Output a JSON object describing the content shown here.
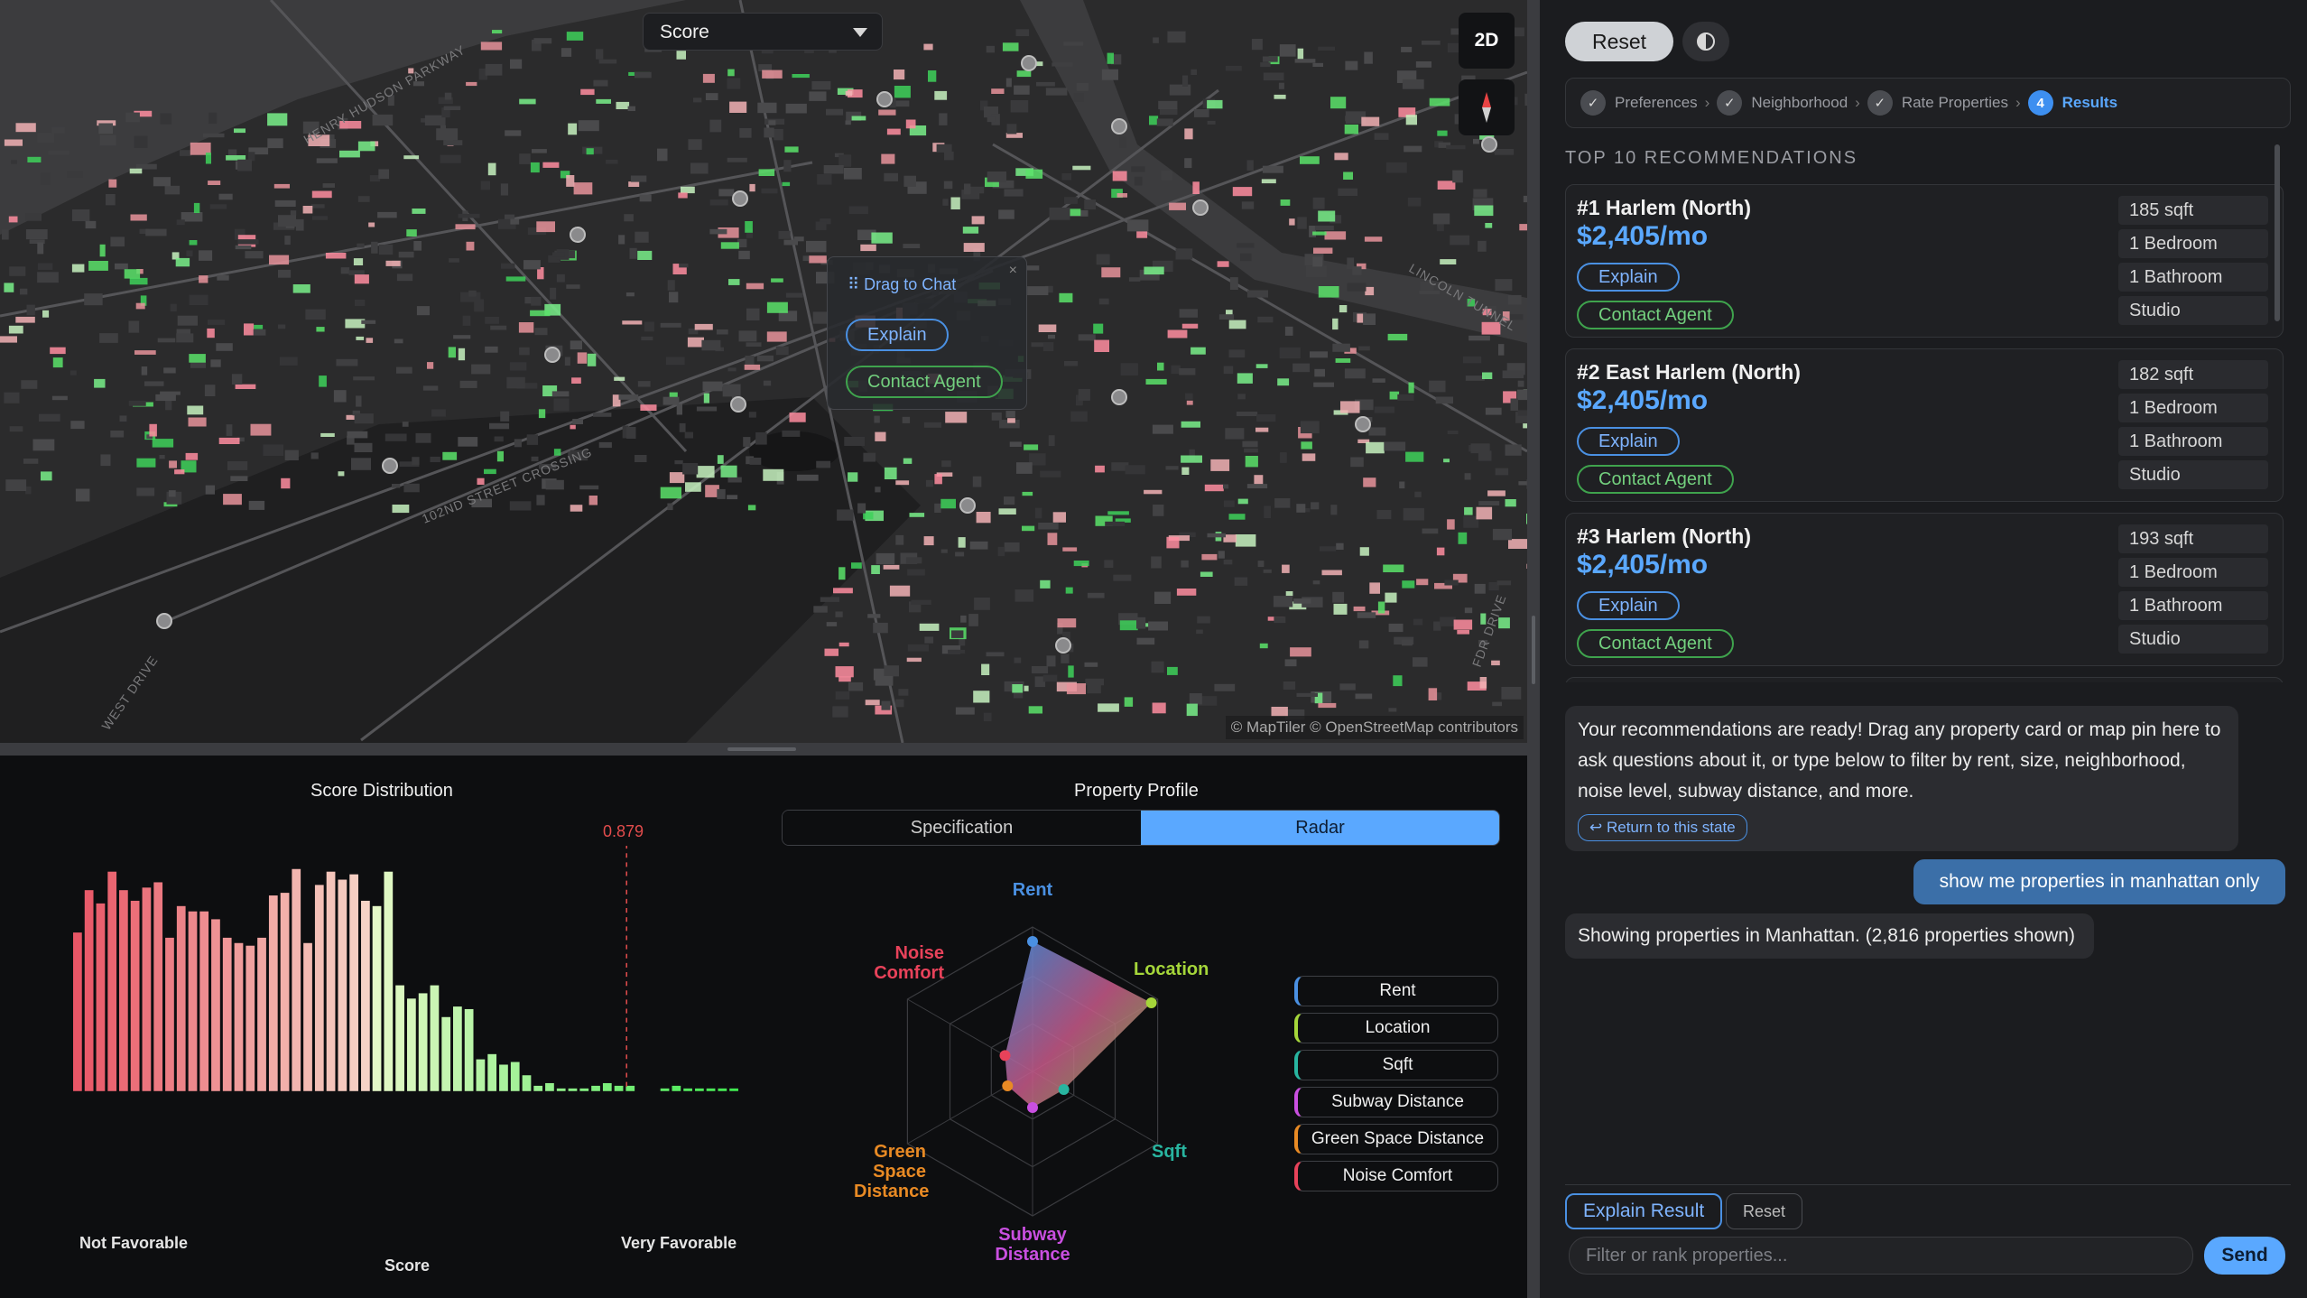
{
  "map": {
    "score_select": "Score",
    "view_toggle": "2D",
    "popup": {
      "drag_label": "⠿ Drag to Chat",
      "explain": "Explain",
      "contact": "Contact Agent"
    },
    "attribution": "© MapTiler © OpenStreetMap contributors",
    "labels": [
      "HENRY HUDSON PARKWAY",
      "102ND STREET CROSSING",
      "WEST DRIVE",
      "LINCOLN TUNNEL",
      "FDR DRIVE"
    ]
  },
  "distribution": {
    "title": "Score Distribution",
    "marker_label": "0.879",
    "left_label": "Not Favorable",
    "right_label": "Very Favorable",
    "axis_title": "Score"
  },
  "profile": {
    "title": "Property Profile",
    "tabs": [
      "Specification",
      "Radar"
    ],
    "active_tab": "Radar",
    "axes": [
      {
        "label": "Rent",
        "color": "#4a90e2",
        "value": 0.9
      },
      {
        "label": "Location",
        "color": "#a5d63a",
        "value": 0.95
      },
      {
        "label": "Sqft",
        "color": "#28b5a0",
        "value": 0.25
      },
      {
        "label": "Subway Distance",
        "color": "#c94fe0",
        "value": 0.25
      },
      {
        "label": "Green Space Distance",
        "color": "#e88a24",
        "value": 0.2
      },
      {
        "label": "Noise Comfort",
        "color": "#e8425a",
        "value": 0.22
      }
    ],
    "legend": [
      "Rent",
      "Location",
      "Sqft",
      "Subway Distance",
      "Green Space Distance",
      "Noise Comfort"
    ]
  },
  "panel": {
    "reset": "Reset",
    "steps": [
      {
        "label": "Preferences",
        "mark": "✓"
      },
      {
        "label": "Neighborhood",
        "mark": "✓"
      },
      {
        "label": "Rate Properties",
        "mark": "✓"
      },
      {
        "label": "Results",
        "mark": "4"
      }
    ],
    "section": "TOP 10 RECOMMENDATIONS",
    "cards": [
      {
        "title": "#1 Harlem (North)",
        "price": "$2,405/mo",
        "explain": "Explain",
        "contact": "Contact Agent",
        "specs": [
          "185 sqft",
          "1 Bedroom",
          "1 Bathroom",
          "Studio"
        ]
      },
      {
        "title": "#2 East Harlem (North)",
        "price": "$2,405/mo",
        "explain": "Explain",
        "contact": "Contact Agent",
        "specs": [
          "182 sqft",
          "1 Bedroom",
          "1 Bathroom",
          "Studio"
        ]
      },
      {
        "title": "#3 Harlem (North)",
        "price": "$2,405/mo",
        "explain": "Explain",
        "contact": "Contact Agent",
        "specs": [
          "193 sqft",
          "1 Bedroom",
          "1 Bathroom",
          "Studio"
        ]
      }
    ],
    "messages": [
      {
        "role": "bot",
        "text": "Your recommendations are ready! Drag any property card or map pin here to ask questions about it, or type below to filter by rent, size, neighborhood, noise level, subway distance, and more.",
        "action": "↩ Return to this state"
      },
      {
        "role": "user",
        "text": "show me properties in manhattan only"
      },
      {
        "role": "bot",
        "text": "Showing properties in Manhattan. (2,816 properties shown)"
      }
    ],
    "explain_result": "Explain Result",
    "reset_small": "Reset",
    "input_placeholder": "Filter or rank properties...",
    "send": "Send"
  },
  "chart_data": {
    "type": "bar",
    "title": "Score Distribution",
    "xlabel": "Score",
    "ylabel": "",
    "x_range_labels": [
      "Not Favorable",
      "Very Favorable"
    ],
    "marker": 0.879,
    "values": [
      60,
      76,
      71,
      83,
      76,
      72,
      77,
      79,
      58,
      70,
      68,
      68,
      65,
      58,
      56,
      55,
      58,
      74,
      75,
      84,
      56,
      78,
      83,
      80,
      82,
      72,
      70,
      83,
      40,
      35,
      37,
      40,
      28,
      32,
      31,
      12,
      14,
      10,
      11,
      6,
      2,
      3,
      1,
      1,
      1,
      2,
      3,
      2,
      2,
      0,
      0,
      1,
      2,
      1,
      1,
      1,
      1,
      1
    ],
    "bar_counts_visible": [
      52,
      61,
      57,
      67,
      61,
      58,
      62,
      63,
      47,
      56,
      55,
      55,
      52,
      47,
      45,
      44,
      47,
      59,
      60,
      67,
      45,
      62,
      66,
      64,
      66,
      58,
      56,
      66,
      32,
      28,
      30,
      32,
      22,
      26,
      25,
      10,
      11,
      8,
      9,
      5,
      2,
      3,
      1,
      1,
      1,
      2,
      3,
      2,
      2,
      0,
      0,
      1,
      2,
      1,
      1,
      1,
      1,
      1
    ]
  }
}
